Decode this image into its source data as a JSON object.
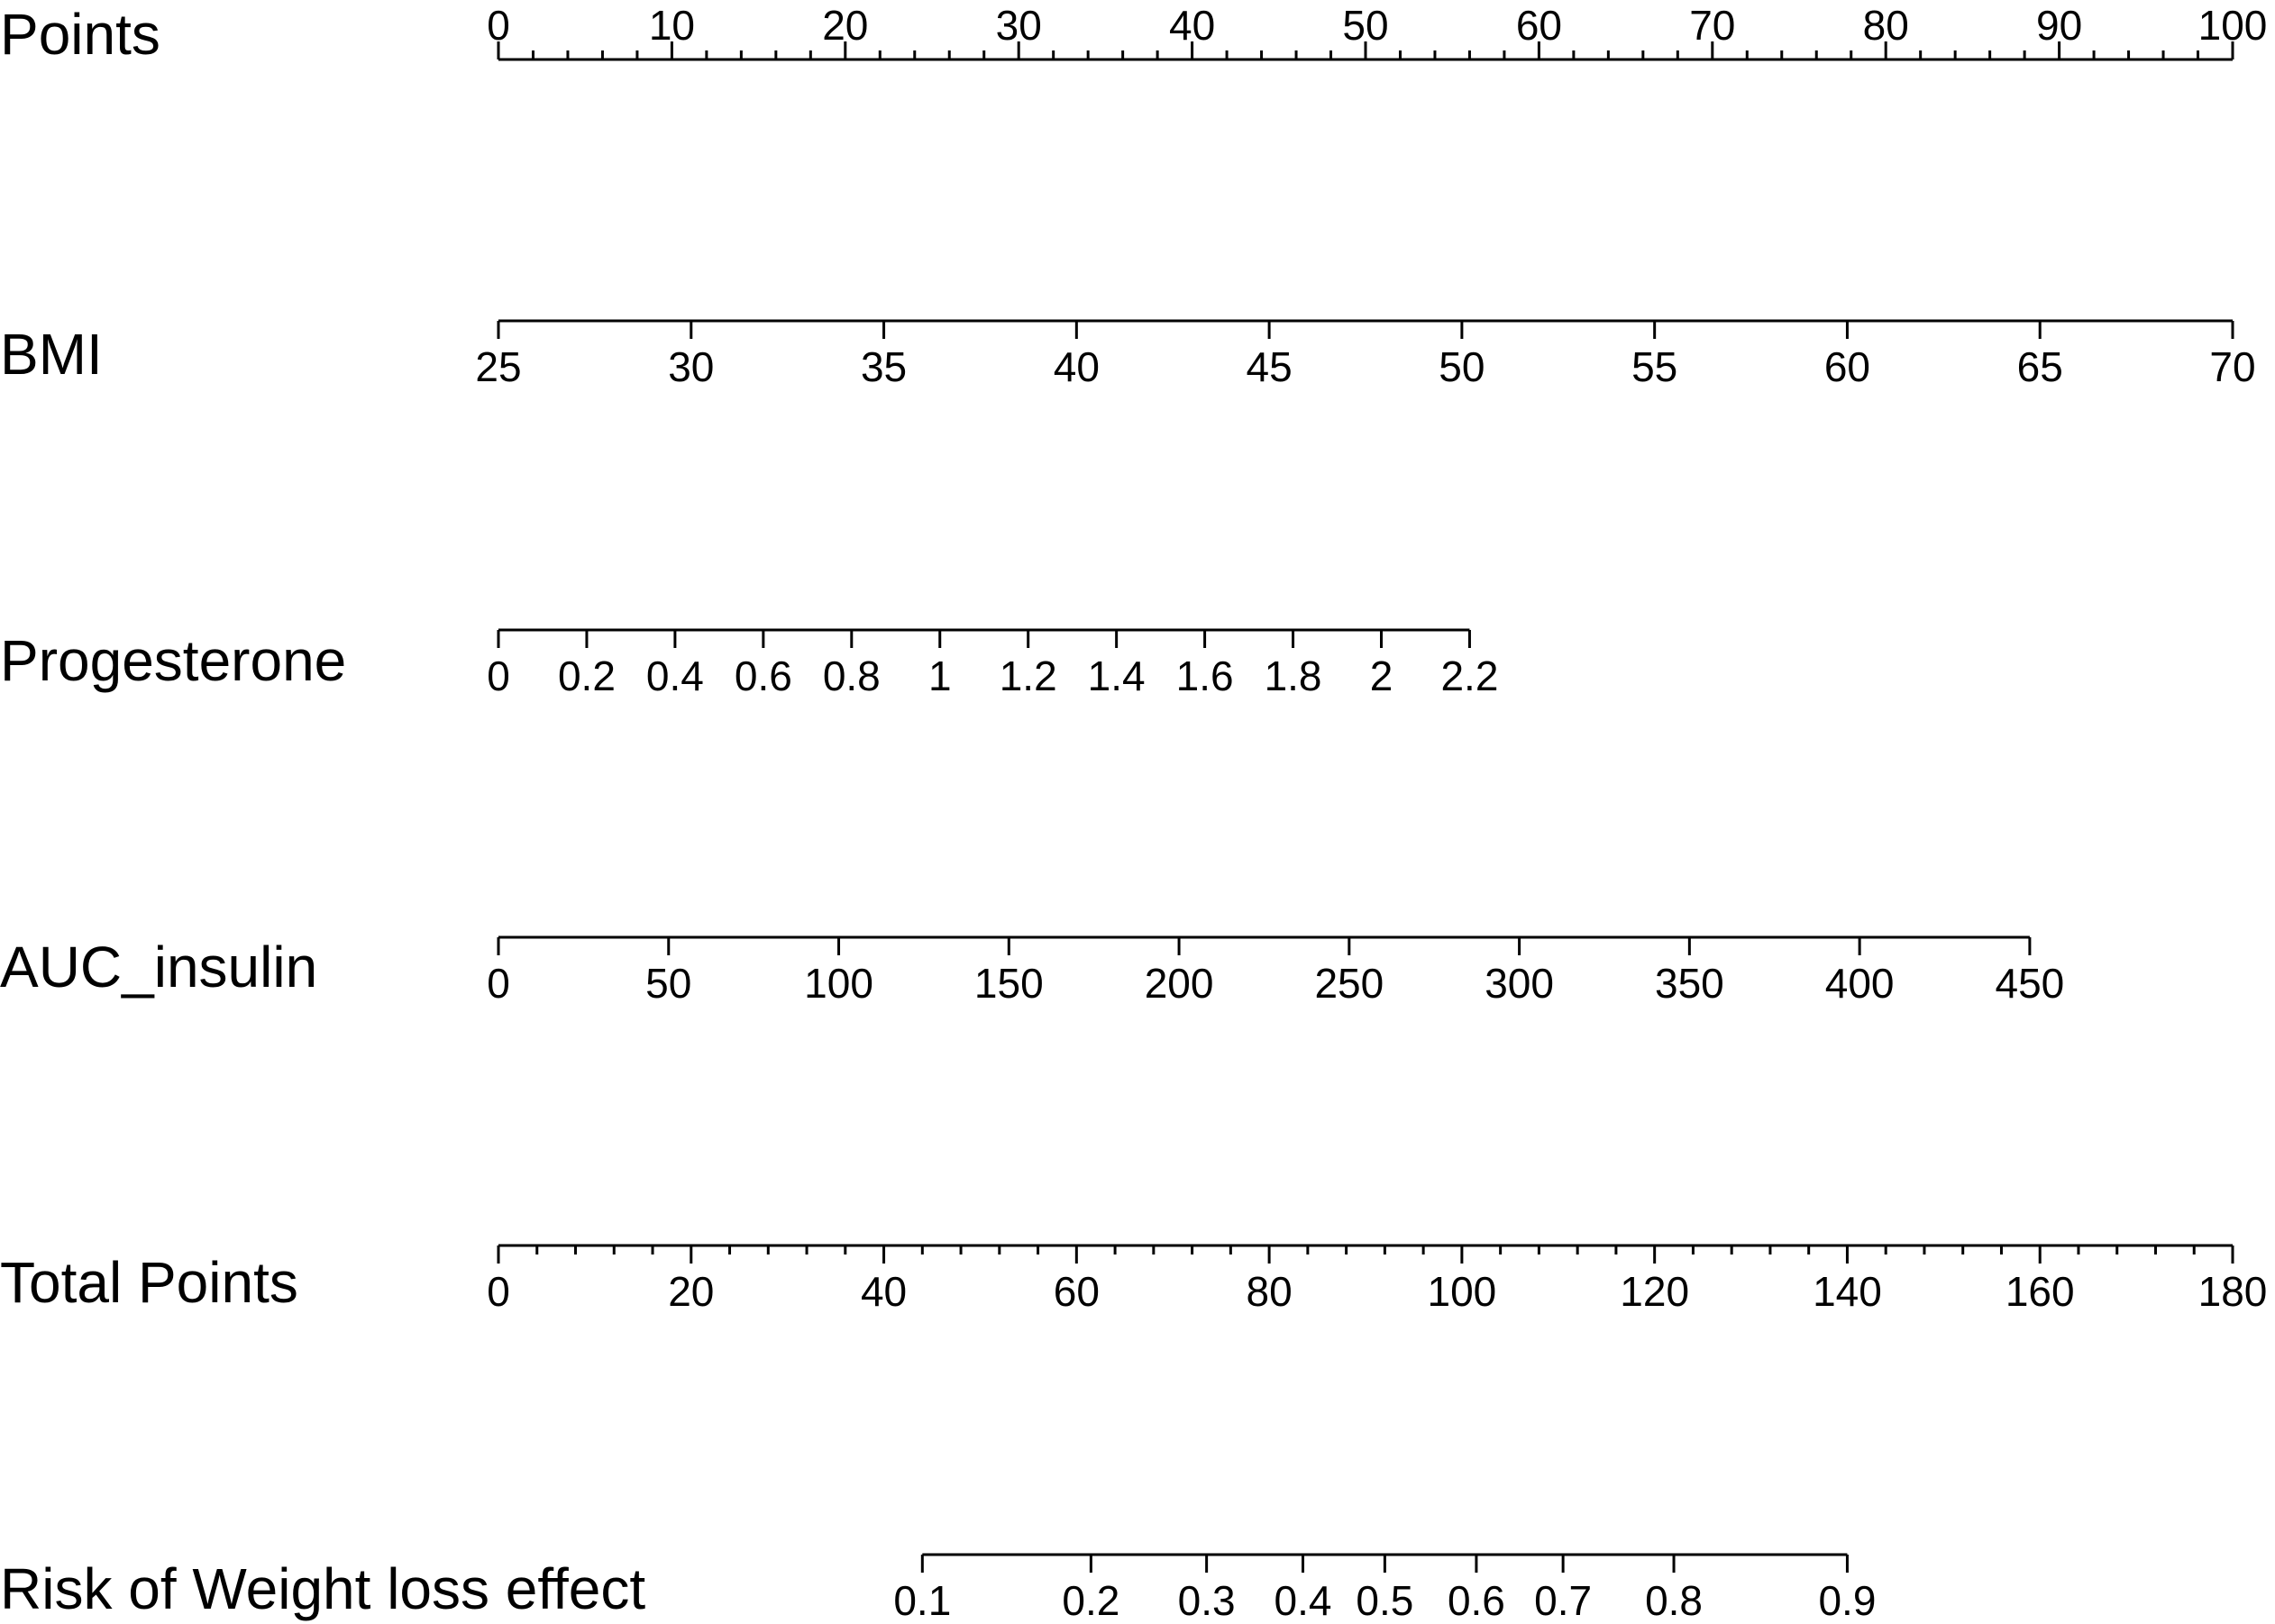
{
  "chart_data": {
    "type": "nomogram",
    "rows": [
      {
        "label": "Points",
        "ticks": [
          0,
          10,
          20,
          30,
          40,
          50,
          60,
          70,
          80,
          90,
          100
        ],
        "tick_labels": [
          "0",
          "10",
          "20",
          "30",
          "40",
          "50",
          "60",
          "70",
          "80",
          "90",
          "100"
        ],
        "minor_ticks": [
          2,
          4,
          6,
          8,
          12,
          14,
          16,
          18,
          22,
          24,
          26,
          28,
          32,
          34,
          36,
          38,
          42,
          44,
          46,
          48,
          52,
          54,
          56,
          58,
          62,
          64,
          66,
          68,
          72,
          74,
          76,
          78,
          82,
          84,
          86,
          88,
          92,
          94,
          96,
          98
        ],
        "points_range": [
          0,
          100
        ],
        "label_position": "above"
      },
      {
        "label": "BMI",
        "ticks": [
          25,
          30,
          35,
          40,
          45,
          50,
          55,
          60,
          65,
          70
        ],
        "tick_labels": [
          "25",
          "30",
          "35",
          "40",
          "45",
          "50",
          "55",
          "60",
          "65",
          "70"
        ],
        "points_range": [
          0,
          100
        ],
        "label_position": "below"
      },
      {
        "label": "Progesterone",
        "ticks": [
          0,
          0.2,
          0.4,
          0.6,
          0.8,
          1,
          1.2,
          1.4,
          1.6,
          1.8,
          2,
          2.2
        ],
        "tick_labels": [
          "0",
          "0.2",
          "0.4",
          "0.6",
          "0.8",
          "1",
          "1.2",
          "1.4",
          "1.6",
          "1.8",
          "2",
          "2.2"
        ],
        "points_range": [
          0,
          56
        ],
        "label_position": "below"
      },
      {
        "label": "AUC_insulin",
        "ticks": [
          0,
          50,
          100,
          150,
          200,
          250,
          300,
          350,
          400,
          450
        ],
        "tick_labels": [
          "0",
          "50",
          "100",
          "150",
          "200",
          "250",
          "300",
          "350",
          "400",
          "450"
        ],
        "points_range": [
          0,
          88.3
        ],
        "label_position": "below"
      },
      {
        "label": "Total Points",
        "ticks": [
          0,
          20,
          40,
          60,
          80,
          100,
          120,
          140,
          160,
          180
        ],
        "tick_labels": [
          "0",
          "20",
          "40",
          "60",
          "80",
          "100",
          "120",
          "140",
          "160",
          "180"
        ],
        "minor_ticks": [
          4,
          8,
          12,
          16,
          24,
          28,
          32,
          36,
          44,
          48,
          52,
          56,
          64,
          68,
          72,
          76,
          84,
          88,
          92,
          96,
          104,
          108,
          112,
          116,
          124,
          128,
          132,
          136,
          144,
          148,
          152,
          156,
          164,
          168,
          172,
          176
        ],
        "points_range": [
          0,
          100
        ],
        "label_position": "below"
      },
      {
        "label": "Risk of Weight loss effect",
        "ticks": [
          0.1,
          0.2,
          0.3,
          0.4,
          0.5,
          0.6,
          0.7,
          0.8,
          0.9
        ],
        "tick_labels": [
          "0.1",
          "0.2",
          "0.3",
          "0.4",
          "0.5",
          "0.6",
          "0.7",
          "0.8",
          "0.9"
        ],
        "total_points_at_ticks": [
          44,
          61.5,
          73.5,
          83.5,
          92,
          101.5,
          110.5,
          122,
          140
        ],
        "label_position": "below"
      }
    ],
    "title": "",
    "grid": false,
    "legend": false
  }
}
